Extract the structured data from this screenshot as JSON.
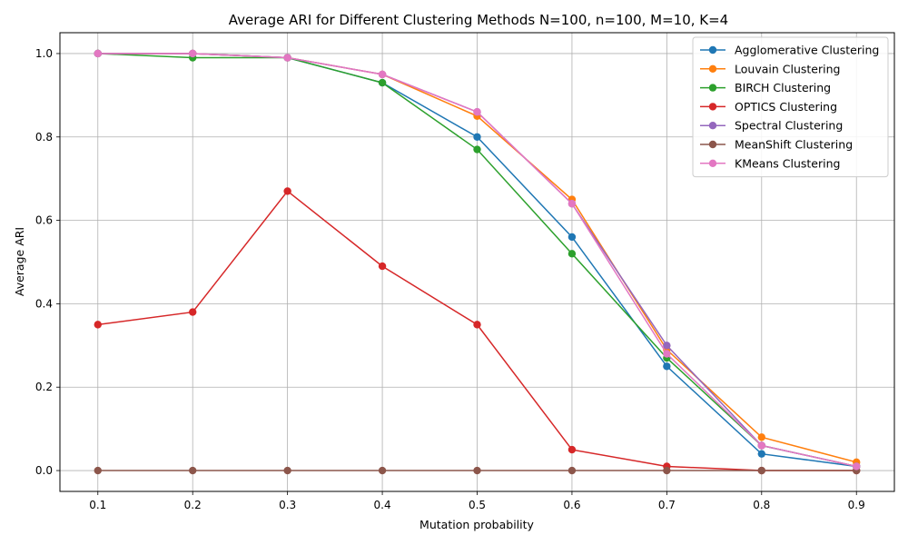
{
  "chart_data": {
    "type": "line",
    "title": "Average ARI for Different Clustering Methods N=100, n=100, M=10, K=4",
    "xlabel": "Mutation probability",
    "ylabel": "Average ARI",
    "x": [
      0.1,
      0.2,
      0.3,
      0.4,
      0.5,
      0.6,
      0.7,
      0.8,
      0.9
    ],
    "x_tick_labels": [
      "0.1",
      "0.2",
      "0.3",
      "0.4",
      "0.5",
      "0.6",
      "0.7",
      "0.8",
      "0.9"
    ],
    "y_tick_labels": [
      "0.0",
      "0.2",
      "0.4",
      "0.6",
      "0.8",
      "1.0"
    ],
    "y_ticks": [
      0.0,
      0.2,
      0.4,
      0.6,
      0.8,
      1.0
    ],
    "xlim": [
      0.06,
      0.94
    ],
    "ylim": [
      -0.05,
      1.05
    ],
    "grid": true,
    "legend_position": "top-right",
    "series": [
      {
        "name": "Agglomerative Clustering",
        "color": "#1f77b4",
        "values": [
          1.0,
          1.0,
          0.99,
          0.93,
          0.8,
          0.56,
          0.25,
          0.04,
          0.01
        ]
      },
      {
        "name": "Louvain Clustering",
        "color": "#ff7f0e",
        "values": [
          1.0,
          1.0,
          0.99,
          0.95,
          0.85,
          0.65,
          0.29,
          0.08,
          0.02
        ]
      },
      {
        "name": "BIRCH Clustering",
        "color": "#2ca02c",
        "values": [
          1.0,
          0.99,
          0.99,
          0.93,
          0.77,
          0.52,
          0.27,
          0.06,
          0.01
        ]
      },
      {
        "name": "OPTICS Clustering",
        "color": "#d62728",
        "values": [
          0.35,
          0.38,
          0.67,
          0.49,
          0.35,
          0.05,
          0.01,
          0.0,
          0.0
        ]
      },
      {
        "name": "Spectral Clustering",
        "color": "#9467bd",
        "values": [
          1.0,
          1.0,
          0.99,
          0.95,
          0.86,
          0.64,
          0.3,
          0.06,
          0.01
        ]
      },
      {
        "name": "MeanShift Clustering",
        "color": "#8c564b",
        "values": [
          0.0,
          0.0,
          0.0,
          0.0,
          0.0,
          0.0,
          0.0,
          0.0,
          0.0
        ]
      },
      {
        "name": "KMeans Clustering",
        "color": "#e377c2",
        "values": [
          1.0,
          1.0,
          0.99,
          0.95,
          0.86,
          0.64,
          0.28,
          0.06,
          0.01
        ]
      }
    ]
  }
}
